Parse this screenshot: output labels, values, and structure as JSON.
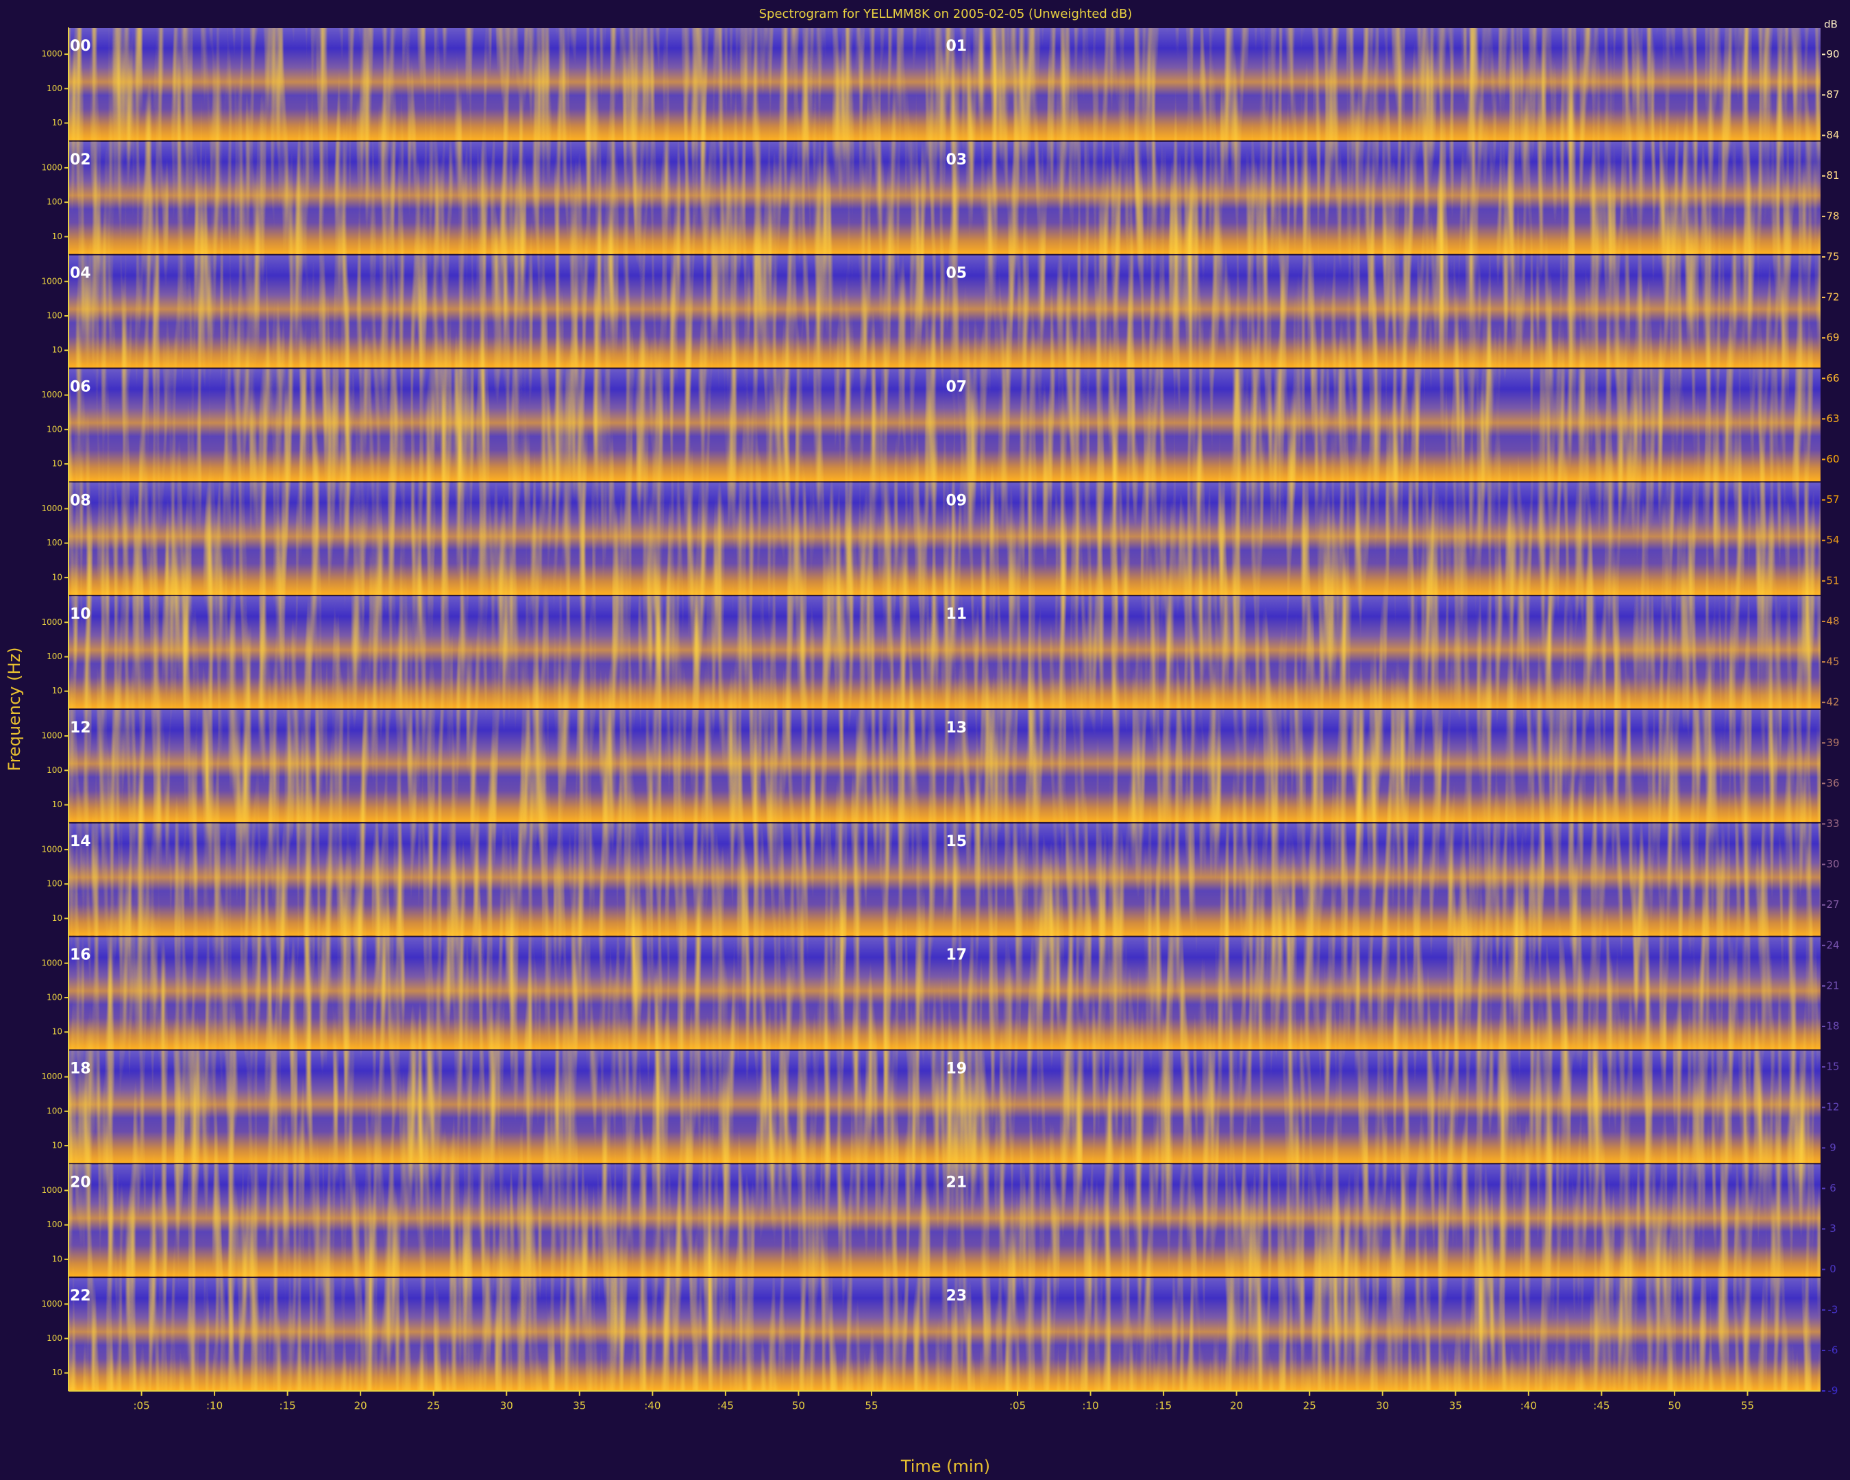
{
  "chart_data": {
    "type": "spectrogram",
    "title": "Spectrogram for YELLMM8K on 2005-02-05 (Unweighted dB)",
    "xlabel": "Time (min)",
    "ylabel": "Frequency (Hz)",
    "panels": [
      "00",
      "01",
      "02",
      "03",
      "04",
      "05",
      "06",
      "07",
      "08",
      "09",
      "10",
      "11",
      "12",
      "13",
      "14",
      "15",
      "16",
      "17",
      "18",
      "19",
      "20",
      "21",
      "22",
      "23"
    ],
    "columns": 2,
    "xlim": [
      0,
      60
    ],
    "xticks": [
      {
        "value": 5,
        "label": ":05"
      },
      {
        "value": 10,
        "label": ":10"
      },
      {
        "value": 15,
        "label": ":15"
      },
      {
        "value": 20,
        "label": "20"
      },
      {
        "value": 25,
        "label": "25"
      },
      {
        "value": 30,
        "label": "30"
      },
      {
        "value": 35,
        "label": "35"
      },
      {
        "value": 40,
        "label": ":40"
      },
      {
        "value": 45,
        "label": ":45"
      },
      {
        "value": 50,
        "label": "50"
      },
      {
        "value": 55,
        "label": "55"
      }
    ],
    "log_y": true,
    "ylim": [
      3,
      6000
    ],
    "yticks": [
      1000,
      100,
      10
    ],
    "colorbar": {
      "label": "dB",
      "lim": [
        -9,
        92
      ],
      "ticks": [
        90,
        87,
        84,
        81,
        78,
        75,
        72,
        69,
        66,
        63,
        60,
        57,
        54,
        51,
        48,
        45,
        42,
        39,
        36,
        33,
        30,
        27,
        24,
        21,
        18,
        15,
        12,
        9,
        6,
        3,
        0,
        -3,
        -6,
        -9
      ],
      "colors": [
        "#3a2cc8",
        "#7a55b0",
        "#ffa800",
        "#fff2c8"
      ]
    }
  }
}
